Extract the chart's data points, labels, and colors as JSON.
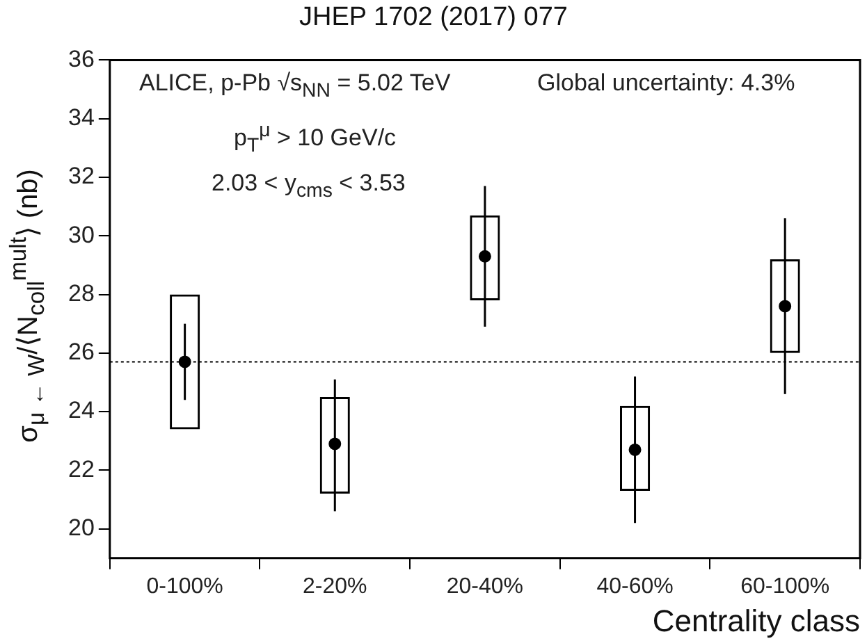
{
  "chart_data": {
    "type": "scatter",
    "title": "JHEP 1702 (2017) 077",
    "xlabel": "Centrality class",
    "ylabel": "σ$_{μ ← W}$/⟨N$_{coll}$$^{mult}$⟩ (nb)",
    "annotations": [
      "ALICE, p-Pb √s$_{NN}$ = 5.02 TeV",
      "Global uncertainty: 4.3%",
      "p$_{T}$$^{μ}$ > 10 GeV/c",
      "2.03 < y$_{cms}$ < 3.53"
    ],
    "categories": [
      "0-100%",
      "2-20%",
      "20-40%",
      "40-60%",
      "60-100%"
    ],
    "series": [
      {
        "type": "bar",
        "color": "#000000",
        "base": [
          23.4,
          21.2,
          27.8,
          21.3,
          26.0
        ],
        "values": [
          4.6,
          3.3,
          2.9,
          2.9,
          3.2
        ]
      },
      {
        "color": "#000000",
        "values": [
          25.7,
          22.9,
          29.3,
          22.7,
          27.6
        ],
        "errors": [
          [
            24.4,
            27.0
          ],
          [
            20.6,
            25.1
          ],
          [
            26.9,
            31.7
          ],
          [
            20.2,
            25.2
          ],
          [
            24.6,
            30.6
          ]
        ]
      }
    ],
    "ylim": [
      19,
      36
    ],
    "yticks": [
      20,
      22,
      24,
      26,
      28,
      30,
      32,
      34,
      36
    ],
    "ref_lines": [
      {
        "axis": "y",
        "value": 25.7,
        "line_style": "dotted",
        "color": "#000000"
      }
    ],
    "grid": false,
    "legend": false,
    "marker": "circle"
  }
}
